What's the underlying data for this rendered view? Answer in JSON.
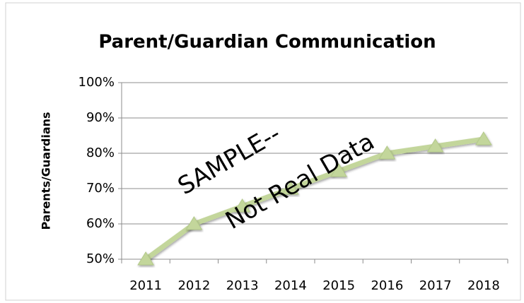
{
  "chart_data": {
    "type": "line",
    "title": "Parent/Guardian Communication",
    "y_axis_label": "Parents/Guardians",
    "categories": [
      "2011",
      "2012",
      "2013",
      "2014",
      "2015",
      "2016",
      "2017",
      "2018"
    ],
    "series": [
      {
        "name": "Parents/Guardians",
        "color": "#c3d69b",
        "values": [
          50,
          60,
          65,
          70,
          75,
          80,
          82,
          84
        ]
      }
    ],
    "ylim": [
      50,
      100
    ],
    "yticks": [
      {
        "value": 50,
        "label": "50%"
      },
      {
        "value": 60,
        "label": "60%"
      },
      {
        "value": 70,
        "label": "70%"
      },
      {
        "value": 80,
        "label": "80%"
      },
      {
        "value": 90,
        "label": "90%"
      },
      {
        "value": 100,
        "label": "100%"
      }
    ],
    "grid": true,
    "annotations": [
      "SAMPLE--",
      "Not Real Data"
    ]
  }
}
